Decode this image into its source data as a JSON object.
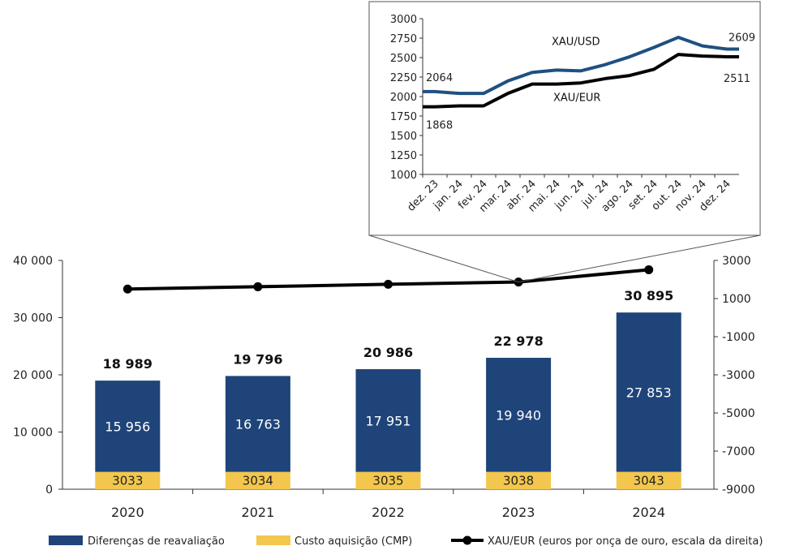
{
  "colors": {
    "revaluation": "#1f4479",
    "cost": "#f3c74d",
    "xau_eur": "#000000",
    "xau_usd": "#1f5082"
  },
  "legend": {
    "revaluation": "Diferenças de reavaliação",
    "cost": "Custo aquisição (CMP)",
    "xau_eur": "XAU/EUR (euros por onça de ouro, escala da direita)"
  },
  "chart_data": [
    {
      "type": "bar",
      "categories": [
        "2020",
        "2021",
        "2022",
        "2023",
        "2024"
      ],
      "series": [
        {
          "name": "Custo aquisição (CMP)",
          "values": [
            3033,
            3034,
            3035,
            3038,
            3043
          ],
          "labels": [
            "3033",
            "3034",
            "3035",
            "3038",
            "3043"
          ]
        },
        {
          "name": "Diferenças de reavaliação",
          "values": [
            15956,
            16763,
            17951,
            19940,
            27853
          ],
          "labels": [
            "15 956",
            "16 763",
            "17 951",
            "19 940",
            "27 853"
          ]
        }
      ],
      "totals": [
        18989,
        19796,
        20986,
        22978,
        30895
      ],
      "total_labels": [
        "18 989",
        "19 796",
        "20 986",
        "22 978",
        "30 895"
      ],
      "line_series": {
        "name": "XAU/EUR (euros por onça de ouro, escala da direita)",
        "values": [
          1500,
          1620,
          1750,
          1868,
          2511
        ]
      },
      "ylim": [
        0,
        40000
      ],
      "yticks": [
        0,
        10000,
        20000,
        30000,
        40000
      ],
      "ytick_labels": [
        "0",
        "10 000",
        "20 000",
        "30 000",
        "40 000"
      ],
      "y2lim": [
        -9000,
        3000
      ],
      "y2ticks": [
        -9000,
        -7000,
        -5000,
        -3000,
        -1000,
        1000,
        3000
      ],
      "y2tick_labels": [
        "-9000",
        "-7000",
        "-5000",
        "-3000",
        "-1000",
        "1000",
        "3000"
      ],
      "legend_position": "bottom"
    },
    {
      "type": "line",
      "x": [
        "dez. 23",
        "jan. 24",
        "fev. 24",
        "mar. 24",
        "abr. 24",
        "mai. 24",
        "jun. 24",
        "jul. 24",
        "ago. 24",
        "set. 24",
        "out. 24",
        "nov. 24",
        "dez. 24"
      ],
      "series": [
        {
          "name": "XAU/USD",
          "values": [
            2064,
            2040,
            2040,
            2200,
            2310,
            2340,
            2330,
            2410,
            2510,
            2630,
            2760,
            2650,
            2609
          ]
        },
        {
          "name": "XAU/EUR",
          "values": [
            1868,
            1880,
            1880,
            2040,
            2160,
            2160,
            2175,
            2230,
            2270,
            2350,
            2540,
            2520,
            2511
          ]
        }
      ],
      "point_labels": {
        "first_usd": "2064",
        "first_eur": "1868",
        "last_usd": "2609",
        "last_eur": "2511"
      },
      "ylim": [
        1000,
        3000
      ],
      "yticks": [
        1000,
        1250,
        1500,
        1750,
        2000,
        2250,
        2500,
        2750,
        3000
      ],
      "ytick_labels": [
        "1000",
        "1250",
        "1500",
        "1750",
        "2000",
        "2250",
        "2500",
        "2750",
        "3000"
      ],
      "grid": false
    }
  ]
}
